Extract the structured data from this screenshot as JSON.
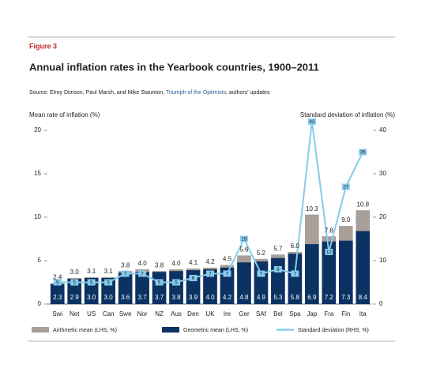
{
  "chart_data": {
    "type": "bar-line",
    "figure_label": "Figure 3",
    "title": "Annual inflation rates in the Yearbook countries, 1900–2011",
    "source": {
      "prefix": "Source: Elroy Dimson, Paul Marsh, and Mike Staunton, ",
      "link": "Triumph of the Optimists",
      "suffix": "; authors' updates"
    },
    "y_label": "Mean rate of inflation (%)",
    "y2_label": "Standard deviation of inflation (%)",
    "categories": [
      "Swi",
      "Net",
      "US",
      "Can",
      "Swe",
      "Nor",
      "NZ",
      "Aus",
      "Den",
      "UK",
      "Ire",
      "Ger",
      "SAf",
      "Bel",
      "Spa",
      "Jap",
      "Fra",
      "Fin",
      "Ita"
    ],
    "series": [
      {
        "name": "Arithmetic mean (LHS, %)",
        "color": "#a79f98",
        "kind": "bar",
        "values": [
          2.4,
          3.0,
          3.1,
          3.1,
          3.8,
          4.0,
          3.8,
          4.0,
          4.1,
          4.2,
          4.5,
          5.6,
          5.2,
          5.7,
          6.0,
          10.3,
          7.8,
          9.0,
          10.8
        ],
        "value_labels": [
          "2.4",
          "3.0",
          "3.1",
          "3.1",
          "3.8",
          "4.0",
          "3.8",
          "4.0",
          "4.1",
          "4.2",
          "4.5",
          "5.6",
          "5.2",
          "5.7",
          "6.0",
          "10.3",
          "7.8",
          "9.0",
          "10.8"
        ]
      },
      {
        "name": "Geometric mean (LHS, %)",
        "color": "#0b3263",
        "kind": "bar",
        "values": [
          2.3,
          2.9,
          3.0,
          3.0,
          3.6,
          3.7,
          3.7,
          3.8,
          3.9,
          4.0,
          4.2,
          4.8,
          4.9,
          5.3,
          5.8,
          6.9,
          7.2,
          7.3,
          8.4
        ],
        "value_labels": [
          "2.3",
          "2.9",
          "3.0",
          "3.0",
          "3.6",
          "3.7",
          "3.7",
          "3.8",
          "3.9",
          "4.0",
          "4.2",
          "4.8",
          "4.9",
          "5.3",
          "5.8",
          "6.9",
          "7.2",
          "7.3",
          "8.4"
        ]
      },
      {
        "name": "Standard deviation (RHS, %)",
        "color": "#86cbec",
        "kind": "line",
        "axis": "y2",
        "values": [
          5,
          5,
          5,
          5,
          7,
          7,
          5,
          5,
          6,
          7,
          7,
          15,
          7,
          8,
          7,
          42,
          12,
          27,
          35
        ]
      }
    ],
    "ylim": [
      0,
      20
    ],
    "yticks": [
      0,
      5,
      10,
      15,
      20
    ],
    "y2lim": [
      0,
      40
    ],
    "y2ticks": [
      0,
      10,
      20,
      30,
      40
    ]
  }
}
